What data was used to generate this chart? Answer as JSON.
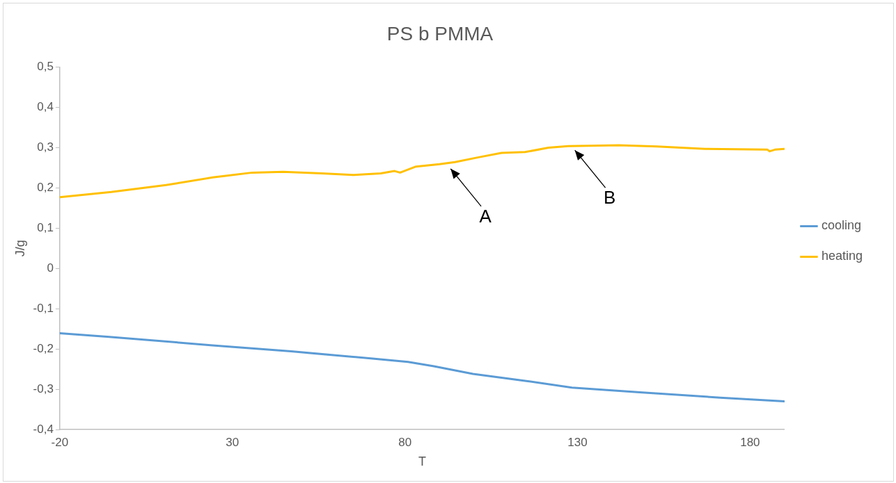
{
  "chart_data": {
    "type": "line",
    "title": "PS b PMMA",
    "xlabel": "T",
    "ylabel": "J/g",
    "xlim": [
      -20,
      190
    ],
    "xticks": [
      -20,
      30,
      80,
      130,
      180
    ],
    "ylim": [
      -0.4,
      0.5
    ],
    "yticks": [
      {
        "value": -0.4,
        "label": "-0,4"
      },
      {
        "value": -0.3,
        "label": "-0,3"
      },
      {
        "value": -0.2,
        "label": "-0,2"
      },
      {
        "value": -0.1,
        "label": "-0,1"
      },
      {
        "value": 0,
        "label": "0"
      },
      {
        "value": 0.1,
        "label": "0,1"
      },
      {
        "value": 0.2,
        "label": "0,2"
      },
      {
        "value": 0.3,
        "label": "0,3"
      },
      {
        "value": 0.4,
        "label": "0,4"
      },
      {
        "value": 0.5,
        "label": "0,5"
      }
    ],
    "grid": false,
    "legend": "right",
    "marker": "none",
    "line_style": "solid",
    "series": [
      {
        "name": "cooling",
        "color": "#5b9bd5",
        "x": [
          -20,
          -5.7,
          24.3,
          47,
          69.6,
          80.9,
          88.4,
          99.7,
          114.8,
          128.4,
          148.8,
          171.4,
          190
        ],
        "values": [
          -0.161,
          -0.17,
          -0.191,
          -0.206,
          -0.223,
          -0.232,
          -0.243,
          -0.262,
          -0.279,
          -0.296,
          -0.308,
          -0.321,
          -0.33
        ]
      },
      {
        "name": "heating",
        "color": "#ffc000",
        "x": [
          -20,
          -5.1,
          10.8,
          24.3,
          35.7,
          44.7,
          56,
          65,
          73,
          77,
          78.6,
          83.2,
          90,
          94.5,
          101.3,
          108,
          114.8,
          121.6,
          127.3,
          142,
          153,
          167,
          185,
          185.7,
          187.2,
          190
        ],
        "values": [
          0.177,
          0.19,
          0.207,
          0.226,
          0.238,
          0.24,
          0.236,
          0.232,
          0.236,
          0.242,
          0.238,
          0.253,
          0.259,
          0.264,
          0.276,
          0.287,
          0.289,
          0.3,
          0.304,
          0.306,
          0.303,
          0.297,
          0.295,
          0.291,
          0.295,
          0.297
        ]
      }
    ],
    "annotations": [
      {
        "text": "A",
        "x": 92,
        "y": 0.258
      },
      {
        "text": "B",
        "x": 128,
        "y": 0.304
      }
    ]
  }
}
